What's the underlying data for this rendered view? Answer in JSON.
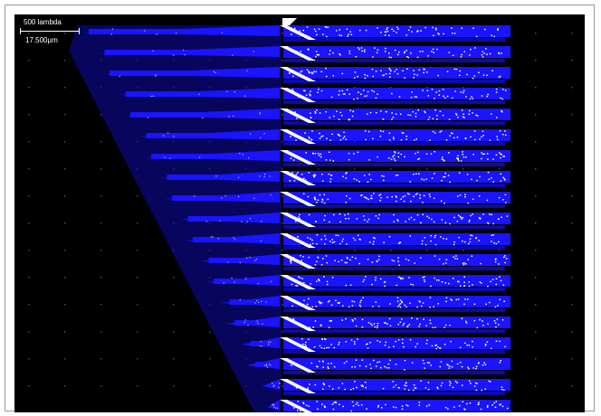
{
  "scale_bar": {
    "lambda_label": "500 lambda",
    "micron_label": "17.500µm"
  },
  "colors": {
    "background": "#000000",
    "metal": "#1a14ff",
    "metal_dark": "#0c0aa8",
    "via": "#ffffff",
    "grid_dot": "#4a4a4a"
  },
  "layout": {
    "description_tag": "vlsi-chip-layout",
    "row_count": 19
  }
}
